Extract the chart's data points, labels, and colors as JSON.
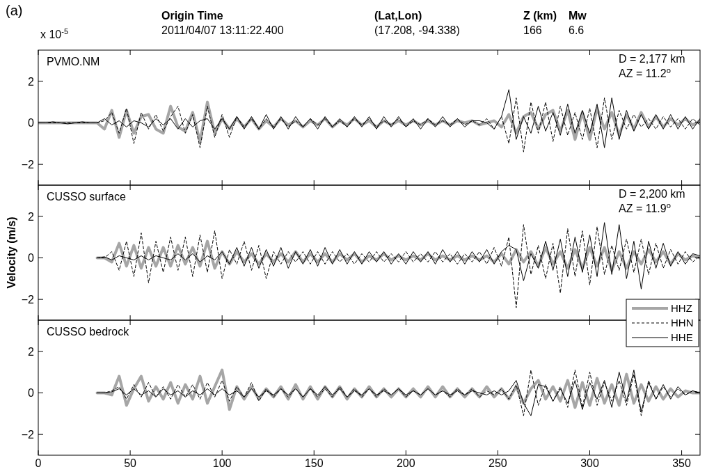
{
  "chart_data": [
    {
      "type": "line",
      "title": "PVMO.NM",
      "annotations": [
        "(a)",
        "Origin Time",
        "2011/04/07 13:11:22.400",
        "(Lat,Lon)",
        "(17.208, -94.338)",
        "Z (km)",
        "166",
        "Mw",
        "6.6",
        "x 10$^{-5}$",
        "D = 2,177 km",
        "AZ = 11.2$^{o}$"
      ],
      "x": [
        0,
        4,
        8,
        12,
        16,
        20,
        24,
        28,
        32,
        36,
        40,
        44,
        48,
        52,
        56,
        60,
        64,
        68,
        72,
        76,
        80,
        84,
        88,
        92,
        96,
        100,
        104,
        108,
        112,
        116,
        120,
        124,
        128,
        132,
        136,
        140,
        144,
        148,
        152,
        156,
        160,
        164,
        168,
        172,
        176,
        180,
        184,
        188,
        192,
        196,
        200,
        204,
        208,
        212,
        216,
        220,
        224,
        228,
        232,
        236,
        240,
        244,
        248,
        252,
        256,
        260,
        264,
        268,
        272,
        276,
        280,
        284,
        288,
        292,
        296,
        300,
        304,
        308,
        312,
        316,
        320,
        324,
        328,
        332,
        336,
        340,
        344,
        348,
        352,
        356,
        360
      ],
      "xlim": [
        0,
        360
      ],
      "xticks": [
        0,
        50,
        100,
        150,
        200,
        250,
        300,
        350
      ],
      "ylim": [
        -3,
        3.5
      ],
      "yticks": [
        -2,
        0,
        2
      ],
      "tick_labels": "y",
      "series": [
        {
          "color": "#a6a6a6",
          "values": [
            0,
            0,
            0,
            0,
            0,
            0,
            0,
            0,
            0,
            -0.3,
            0.6,
            -0.7,
            0.6,
            -0.5,
            0.3,
            0.4,
            -0.3,
            -0.5,
            0.8,
            -0.2,
            -0.4,
            0.5,
            -0.9,
            1.0,
            -0.5,
            0.2,
            -0.3,
            0.2,
            -0.2,
            0.2,
            -0.3,
            0.1,
            -0.2,
            0.2,
            -0.1,
            0.1,
            -0.2,
            0.1,
            -0.1,
            0.2,
            -0.2,
            0.1,
            -0.1,
            0.2,
            -0.1,
            0.1,
            -0.2,
            0.1,
            -0.1,
            0.1,
            -0.1,
            0.1,
            -0.1,
            0.1,
            -0.1,
            0.1,
            -0.1,
            0.1,
            0,
            0.1,
            -0.1,
            0,
            0.1,
            -0.2,
            0.4,
            -0.5,
            0.3,
            0.5,
            -0.3,
            0.4,
            0.6,
            -0.4,
            0.6,
            -0.8,
            0.5,
            -0.8,
            0.7,
            -0.3,
            0.5,
            -0.6,
            0.4,
            -0.3,
            0.5,
            -0.2,
            0.3,
            -0.2,
            0.2,
            -0.1,
            0.2,
            -0.1,
            0.1
          ]
        },
        {
          "color": "#000000",
          "line_style": "dashed",
          "values": [
            0,
            0,
            0,
            0,
            0,
            0,
            0,
            0,
            0,
            0.1,
            0.5,
            -0.5,
            0.7,
            -1.0,
            0.5,
            -0.3,
            0.4,
            -0.4,
            0.3,
            0.8,
            -0.5,
            0.4,
            -1.2,
            0.8,
            -0.7,
            0.4,
            -0.7,
            0.3,
            -0.2,
            0.2,
            -0.3,
            0.2,
            -0.2,
            0.2,
            -0.2,
            0.1,
            -0.2,
            0.2,
            -0.1,
            0.2,
            -0.2,
            0.1,
            -0.2,
            0.2,
            -0.1,
            0.2,
            -0.2,
            0.1,
            -0.1,
            0.2,
            -0.2,
            0.1,
            -0.1,
            0.2,
            -0.1,
            0.1,
            -0.1,
            0.2,
            -0.1,
            0.1,
            -0.1,
            0.2,
            -0.3,
            0.3,
            -1.0,
            1.2,
            -1.4,
            1.0,
            -0.5,
            1.0,
            -0.9,
            0.8,
            -0.6,
            0.5,
            -0.8,
            0.7,
            -1.2,
            1.2,
            -0.8,
            0.6,
            -0.3,
            0.4,
            -0.2,
            0.2,
            -0.3,
            0.3,
            -0.2,
            0.2,
            -0.3,
            0.2,
            -0.1
          ]
        },
        {
          "color": "#000000",
          "line_style": "solid",
          "values": [
            0,
            0,
            0.05,
            0,
            -0.05,
            0,
            0.05,
            0,
            0,
            0.2,
            -0.1,
            0.1,
            -0.2,
            0.1,
            0,
            -0.2,
            0.2,
            -0.1,
            0.2,
            -0.3,
            0.2,
            -0.2,
            0.1,
            0.2,
            -0.3,
            0.2,
            -0.3,
            0.3,
            -0.3,
            0.3,
            -0.3,
            0.4,
            -0.3,
            0.3,
            -0.3,
            0.3,
            -0.2,
            0.2,
            -0.3,
            0.3,
            -0.2,
            0.2,
            -0.2,
            0.3,
            -0.2,
            0.3,
            -0.3,
            0.3,
            -0.2,
            0.3,
            -0.2,
            0.2,
            -0.3,
            0.2,
            -0.2,
            0.3,
            -0.2,
            0.2,
            -0.2,
            0.1,
            0.1,
            0,
            -0.3,
            0.3,
            1.6,
            -0.8,
            0.3,
            -0.5,
            0.8,
            -0.4,
            0.5,
            -0.6,
            0.9,
            -0.5,
            0.6,
            -0.5,
            0.9,
            -1.2,
            1.2,
            -0.8,
            0.6,
            -0.4,
            0.4,
            -0.3,
            0.4,
            -0.3,
            0.4,
            -0.3,
            0.3,
            -0.3,
            0.2
          ]
        }
      ]
    },
    {
      "type": "line",
      "title": "CUSSO surface",
      "ylabel": "Velocity (m/s)",
      "annotations": [
        "D = 2,200 km",
        "AZ = 11.9$^{o}$"
      ],
      "legend": "bottom right",
      "x": [
        32,
        36,
        40,
        44,
        48,
        52,
        56,
        60,
        64,
        68,
        72,
        76,
        80,
        84,
        88,
        92,
        96,
        100,
        104,
        108,
        112,
        116,
        120,
        124,
        128,
        132,
        136,
        140,
        144,
        148,
        152,
        156,
        160,
        164,
        168,
        172,
        176,
        180,
        184,
        188,
        192,
        196,
        200,
        204,
        208,
        212,
        216,
        220,
        224,
        228,
        232,
        236,
        240,
        244,
        248,
        252,
        256,
        260,
        264,
        268,
        272,
        276,
        280,
        284,
        288,
        292,
        296,
        300,
        304,
        308,
        312,
        316,
        320,
        324,
        328,
        332,
        336,
        340,
        344,
        348,
        352,
        356,
        360
      ],
      "xlim": [
        0,
        360
      ],
      "xticks": [
        0,
        50,
        100,
        150,
        200,
        250,
        300,
        350
      ],
      "ylim": [
        -3,
        3.5
      ],
      "yticks": [
        -2,
        0,
        2
      ],
      "tick_labels": "y",
      "series": [
        {
          "name": "HHZ",
          "color": "#a6a6a6",
          "values": [
            0,
            0,
            -0.2,
            0.7,
            -0.4,
            0.6,
            -0.5,
            0.5,
            -0.4,
            0.5,
            -0.4,
            0.6,
            -0.3,
            0.5,
            -0.4,
            0.8,
            -0.5,
            0.3,
            -0.3,
            0.3,
            -0.2,
            0.2,
            -0.3,
            0.2,
            -0.2,
            0.2,
            -0.2,
            0.3,
            -0.2,
            0.2,
            -0.2,
            0.2,
            -0.2,
            0.2,
            -0.1,
            0.2,
            -0.2,
            0.1,
            -0.1,
            0.2,
            -0.1,
            0.1,
            -0.1,
            0.1,
            -0.1,
            0.2,
            -0.1,
            0.1,
            -0.1,
            0.1,
            -0.1,
            0.1,
            -0.1,
            0.1,
            -0.2,
            0.2,
            -0.3,
            0.4,
            -0.2,
            0.3,
            -0.4,
            0.5,
            -0.3,
            0.3,
            -0.5,
            0.4,
            -0.5,
            0.5,
            -0.4,
            0.5,
            -0.6,
            0.3,
            -0.5,
            0.3,
            -0.3,
            0.4,
            -0.2,
            0.3,
            -0.3,
            0.2,
            -0.1,
            0.1,
            0
          ]
        },
        {
          "name": "HHN",
          "color": "#000000",
          "line_style": "dashed",
          "values": [
            0,
            0,
            0.3,
            -0.6,
            0.8,
            -0.9,
            1.2,
            -1.2,
            0.8,
            -0.7,
            1.0,
            -0.6,
            1.0,
            -0.9,
            1.1,
            -0.7,
            1.3,
            -1.0,
            0.4,
            -0.3,
            0.8,
            -0.6,
            0.6,
            -1.0,
            0.3,
            -0.3,
            0.3,
            -0.2,
            0.3,
            -0.3,
            0.3,
            -0.3,
            0.3,
            -0.2,
            0.2,
            -0.3,
            0.2,
            -0.2,
            0.3,
            -0.2,
            0.2,
            -0.2,
            0.3,
            -0.2,
            0.2,
            -0.2,
            0.3,
            -0.2,
            0.2,
            -0.3,
            0.2,
            -0.2,
            0.3,
            -0.3,
            0.5,
            -0.4,
            1.0,
            -2.4,
            1.6,
            -0.8,
            0.6,
            -1.0,
            0.7,
            -1.7,
            1.4,
            -0.9,
            1.3,
            -1.3,
            1.5,
            -0.8,
            0.6,
            -0.6,
            0.9,
            -0.7,
            0.9,
            -0.8,
            0.7,
            -0.5,
            0.4,
            -0.3,
            0.3,
            -0.2,
            0.1
          ]
        },
        {
          "name": "HHE",
          "color": "#000000",
          "line_style": "solid",
          "values": [
            0,
            0.05,
            -0.1,
            0.1,
            0,
            -0.1,
            0.1,
            -0.1,
            0.1,
            0,
            -0.1,
            0.2,
            -0.1,
            0.2,
            -0.2,
            0.1,
            -0.1,
            0.3,
            -0.3,
            0.5,
            -0.4,
            0.5,
            -0.5,
            0.4,
            -0.4,
            0.5,
            -0.5,
            0.3,
            -0.3,
            0.4,
            -0.4,
            0.5,
            -0.3,
            0.4,
            -0.3,
            0.3,
            -0.3,
            0.3,
            -0.2,
            0.3,
            -0.3,
            0.2,
            -0.3,
            0.3,
            -0.2,
            0.3,
            -0.3,
            0.4,
            -0.2,
            0.3,
            -0.3,
            0.3,
            -0.2,
            0.4,
            -0.3,
            0.3,
            0.6,
            0.4,
            -1.1,
            0.2,
            -0.5,
            0.8,
            -0.6,
            0.9,
            -0.9,
            1.0,
            -0.7,
            1.1,
            -0.9,
            1.7,
            -0.8,
            1.6,
            -1.0,
            0.8,
            -1.5,
            0.8,
            -0.5,
            0.7,
            -0.4,
            0.3,
            -0.3,
            0.2,
            0.1
          ]
        }
      ]
    },
    {
      "type": "line",
      "title": "CUSSO bedrock",
      "x": [
        32,
        36,
        40,
        44,
        48,
        52,
        56,
        60,
        64,
        68,
        72,
        76,
        80,
        84,
        88,
        92,
        96,
        100,
        104,
        108,
        112,
        116,
        120,
        124,
        128,
        132,
        136,
        140,
        144,
        148,
        152,
        156,
        160,
        164,
        168,
        172,
        176,
        180,
        184,
        188,
        192,
        196,
        200,
        204,
        208,
        212,
        216,
        220,
        224,
        228,
        232,
        236,
        240,
        244,
        248,
        252,
        256,
        260,
        264,
        268,
        272,
        276,
        280,
        284,
        288,
        292,
        296,
        300,
        304,
        308,
        312,
        316,
        320,
        324,
        328,
        332,
        336,
        340,
        344,
        348,
        352,
        356,
        360
      ],
      "xlim": [
        0,
        360
      ],
      "xticks": [
        0,
        50,
        100,
        150,
        200,
        250,
        300,
        350
      ],
      "ylim": [
        -3,
        3.5
      ],
      "yticks": [
        -2,
        0,
        2
      ],
      "series": [
        {
          "color": "#a6a6a6",
          "values": [
            0,
            0,
            -0.1,
            0.8,
            -0.6,
            0.2,
            0.8,
            -0.4,
            0.3,
            -0.3,
            0.5,
            -0.5,
            0.4,
            -0.3,
            0.8,
            -0.5,
            0.3,
            1.1,
            -0.8,
            0.3,
            -0.3,
            0.3,
            -0.3,
            0.2,
            -0.2,
            0.3,
            -0.3,
            0.4,
            -0.3,
            0.3,
            -0.3,
            0.3,
            -0.2,
            0.3,
            -0.3,
            0.2,
            -0.2,
            0.3,
            -0.2,
            0.2,
            -0.2,
            0.2,
            -0.2,
            0.2,
            -0.2,
            0.3,
            -0.2,
            0.3,
            -0.2,
            0.2,
            -0.2,
            0.2,
            -0.2,
            0.3,
            -0.2,
            0.2,
            -0.3,
            0.3,
            -0.5,
            0.2,
            0.6,
            -0.3,
            0.3,
            -0.4,
            0.6,
            -0.7,
            0.5,
            -0.6,
            0.7,
            -0.5,
            0.4,
            -0.6,
            0.9,
            -0.5,
            0.4,
            -0.4,
            0.3,
            -0.3,
            0.2,
            -0.2,
            0.1,
            0,
            0
          ]
        },
        {
          "color": "#000000",
          "line_style": "dashed",
          "values": [
            0,
            0,
            0.1,
            0.3,
            -0.3,
            0.4,
            -0.2,
            0.5,
            -0.2,
            0.3,
            -0.3,
            0.4,
            -0.2,
            0.4,
            -0.3,
            0.5,
            -0.2,
            0.6,
            -0.4,
            0.3,
            -0.2,
            0.5,
            -0.4,
            0.2,
            -0.2,
            0.2,
            -0.2,
            0.2,
            -0.2,
            0.2,
            -0.2,
            0.2,
            -0.2,
            0.3,
            -0.2,
            0.2,
            -0.2,
            0.2,
            -0.2,
            0.2,
            -0.1,
            0.2,
            -0.2,
            0.1,
            -0.1,
            0.2,
            -0.1,
            0.1,
            -0.2,
            0.2,
            -0.1,
            0.2,
            -0.2,
            0.1,
            -0.1,
            0.2,
            -0.3,
            0.4,
            -1.1,
            1.1,
            -0.6,
            0.4,
            -0.4,
            0.3,
            -0.7,
            1.1,
            -0.7,
            1.0,
            -0.6,
            0.5,
            -0.4,
            0.6,
            -0.6,
            0.9,
            -1.1,
            0.6,
            -0.3,
            0.3,
            -0.2,
            0.2,
            -0.1,
            0.1,
            0
          ]
        },
        {
          "color": "#000000",
          "line_style": "solid",
          "values": [
            0,
            0,
            0.05,
            0.2,
            -0.1,
            0.2,
            -0.1,
            0.1,
            -0.2,
            0.2,
            -0.1,
            0.1,
            -0.2,
            0.1,
            -0.1,
            0.2,
            -0.1,
            0.2,
            -0.1,
            0.1,
            -0.2,
            0.2,
            -0.2,
            0.1,
            -0.1,
            0.2,
            -0.1,
            0.2,
            -0.2,
            0.2,
            -0.1,
            0.3,
            -0.1,
            0.2,
            -0.2,
            0.1,
            -0.1,
            0.2,
            -0.1,
            0.1,
            -0.1,
            0.2,
            -0.1,
            0.1,
            -0.1,
            0.2,
            -0.1,
            0.1,
            -0.1,
            0.1,
            -0.1,
            0.1,
            0,
            -0.1,
            0.1,
            -0.1,
            0.1,
            0.6,
            -0.5,
            -1.1,
            0.4,
            0.3,
            -0.4,
            0.2,
            -0.5,
            0.6,
            -0.8,
            0.5,
            -0.3,
            0.6,
            -0.7,
            1.0,
            -0.4,
            1.1,
            -0.9,
            0.5,
            -0.3,
            0.4,
            -0.3,
            0.3,
            -0.1,
            0.1,
            0
          ]
        }
      ]
    }
  ]
}
